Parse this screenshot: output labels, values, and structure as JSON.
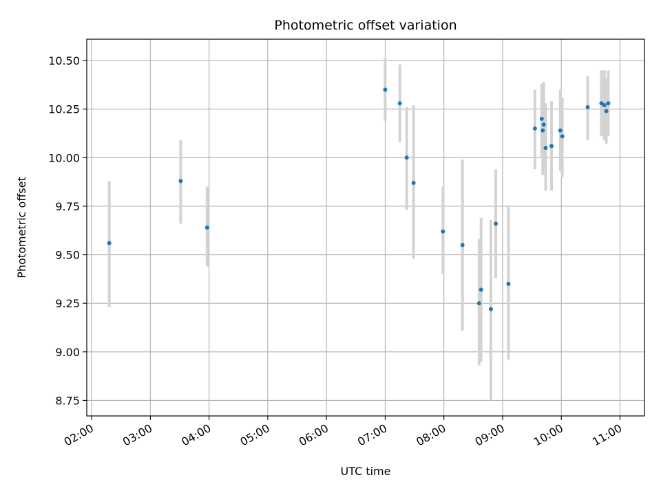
{
  "chart_data": {
    "type": "scatter",
    "title": "Photometric offset variation",
    "xlabel": "UTC time",
    "ylabel": "Photometric offset",
    "grid": true,
    "xlim": [
      "01:55",
      "11:25"
    ],
    "ylim": [
      8.67,
      10.61
    ],
    "x_ticks": [
      "02:00",
      "03:00",
      "04:00",
      "05:00",
      "06:00",
      "07:00",
      "08:00",
      "09:00",
      "10:00",
      "11:00"
    ],
    "y_ticks": [
      "8.75",
      "9.00",
      "9.25",
      "9.50",
      "9.75",
      "10.00",
      "10.25",
      "10.50"
    ],
    "colors": {
      "point": "#1f77b4",
      "errorbar": "#d3d3d3",
      "grid": "#b0b0b0"
    },
    "points": [
      {
        "time": "02:18",
        "y": 9.56,
        "low": 9.23,
        "high": 9.88
      },
      {
        "time": "03:31",
        "y": 9.88,
        "low": 9.66,
        "high": 10.09
      },
      {
        "time": "03:58",
        "y": 9.64,
        "low": 9.44,
        "high": 9.85
      },
      {
        "time": "07:00",
        "y": 10.35,
        "low": 10.19,
        "high": 10.51
      },
      {
        "time": "07:15",
        "y": 10.28,
        "low": 10.08,
        "high": 10.48
      },
      {
        "time": "07:22",
        "y": 10.0,
        "low": 9.73,
        "high": 10.26
      },
      {
        "time": "07:29",
        "y": 9.87,
        "low": 9.48,
        "high": 10.27
      },
      {
        "time": "07:59",
        "y": 9.62,
        "low": 9.4,
        "high": 9.85
      },
      {
        "time": "08:19",
        "y": 9.55,
        "low": 9.11,
        "high": 9.99
      },
      {
        "time": "08:36",
        "y": 9.25,
        "low": 8.93,
        "high": 9.58
      },
      {
        "time": "08:38",
        "y": 9.32,
        "low": 8.95,
        "high": 9.69
      },
      {
        "time": "08:48",
        "y": 9.22,
        "low": 8.75,
        "high": 9.68
      },
      {
        "time": "08:53",
        "y": 9.66,
        "low": 9.38,
        "high": 9.94
      },
      {
        "time": "09:06",
        "y": 9.35,
        "low": 8.96,
        "high": 9.75
      },
      {
        "time": "09:33",
        "y": 10.15,
        "low": 9.94,
        "high": 10.35
      },
      {
        "time": "09:40",
        "y": 10.2,
        "low": 10.0,
        "high": 10.38
      },
      {
        "time": "09:41",
        "y": 10.14,
        "low": 9.91,
        "high": 10.37
      },
      {
        "time": "09:42",
        "y": 10.17,
        "low": 9.95,
        "high": 10.39
      },
      {
        "time": "09:44",
        "y": 10.05,
        "low": 9.83,
        "high": 10.28
      },
      {
        "time": "09:50",
        "y": 10.06,
        "low": 9.83,
        "high": 10.29
      },
      {
        "time": "09:59",
        "y": 10.14,
        "low": 9.93,
        "high": 10.35
      },
      {
        "time": "10:01",
        "y": 10.11,
        "low": 9.9,
        "high": 10.31
      },
      {
        "time": "10:27",
        "y": 10.26,
        "low": 10.09,
        "high": 10.42
      },
      {
        "time": "10:41",
        "y": 10.28,
        "low": 10.11,
        "high": 10.45
      },
      {
        "time": "10:44",
        "y": 10.27,
        "low": 10.09,
        "high": 10.45
      },
      {
        "time": "10:46",
        "y": 10.24,
        "low": 10.07,
        "high": 10.41
      },
      {
        "time": "10:48",
        "y": 10.28,
        "low": 10.11,
        "high": 10.45
      }
    ]
  }
}
